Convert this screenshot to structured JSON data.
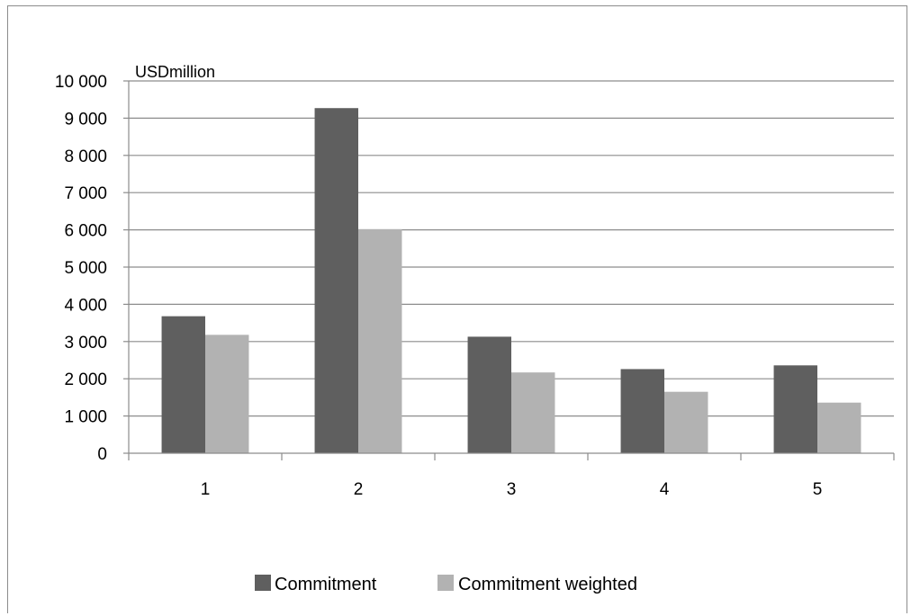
{
  "chart_data": {
    "type": "bar",
    "unit_label": "USDmillion",
    "categories": [
      "1",
      "2",
      "3",
      "4",
      "5"
    ],
    "series": [
      {
        "name": "Commitment",
        "color": "#5f5f5f",
        "values": [
          3680,
          9270,
          3130,
          2260,
          2360
        ]
      },
      {
        "name": "Commitment weighted",
        "color": "#b2b2b2",
        "values": [
          3180,
          6020,
          2170,
          1650,
          1360
        ]
      }
    ],
    "ylim": [
      0,
      10000
    ],
    "yticks": [
      "0",
      "1 000",
      "2 000",
      "3 000",
      "4 000",
      "5 000",
      "6 000",
      "7 000",
      "8 000",
      "9 000",
      "10 000"
    ],
    "grid": true,
    "legend_position": "bottom"
  }
}
